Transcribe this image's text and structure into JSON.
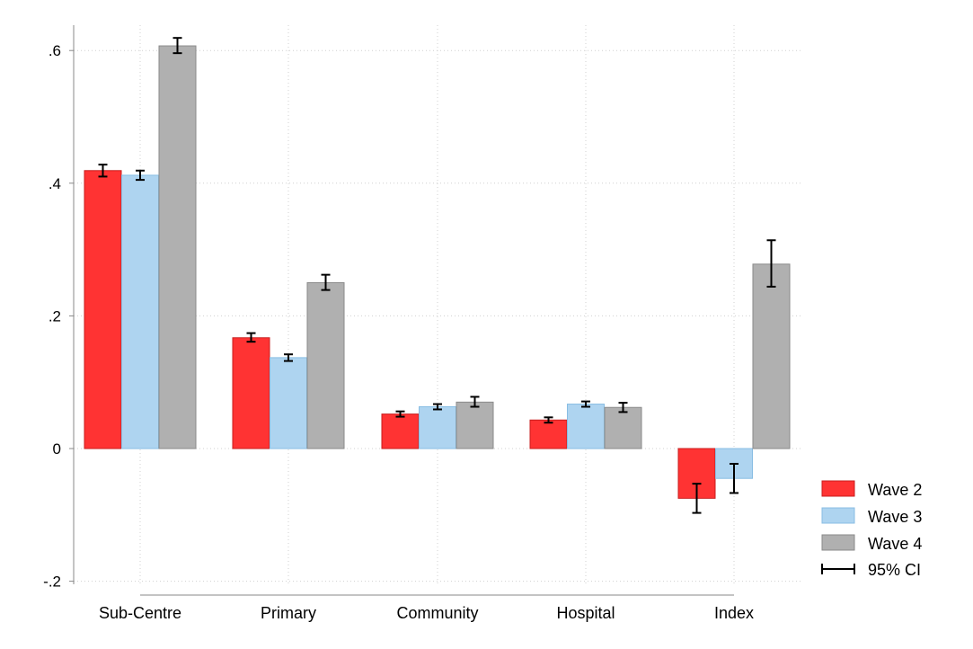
{
  "chart_data": {
    "type": "bar",
    "categories": [
      "Sub-Centre",
      "Primary",
      "Community",
      "Hospital",
      "Index"
    ],
    "series": [
      {
        "name": "Wave 2",
        "color": "#ff3333",
        "stroke": "#c81e1e",
        "values": [
          0.419,
          0.167,
          0.052,
          0.043,
          -0.075
        ],
        "ci_low": [
          0.41,
          0.161,
          0.048,
          0.039,
          -0.097
        ],
        "ci_high": [
          0.428,
          0.174,
          0.056,
          0.047,
          -0.053
        ]
      },
      {
        "name": "Wave 3",
        "color": "#aed4f0",
        "stroke": "#88bde3",
        "values": [
          0.412,
          0.137,
          0.063,
          0.067,
          -0.045
        ],
        "ci_low": [
          0.405,
          0.132,
          0.059,
          0.063,
          -0.067
        ],
        "ci_high": [
          0.419,
          0.142,
          0.067,
          0.071,
          -0.023
        ]
      },
      {
        "name": "Wave 4",
        "color": "#b0b0b0",
        "stroke": "#8a8a8a",
        "values": [
          0.607,
          0.25,
          0.07,
          0.062,
          0.278
        ],
        "ci_low": [
          0.596,
          0.239,
          0.063,
          0.055,
          0.244
        ],
        "ci_high": [
          0.619,
          0.262,
          0.078,
          0.069,
          0.314
        ]
      }
    ],
    "ci_label": "95% CI",
    "yticks": [
      0.6,
      0.4,
      0.2,
      0,
      -0.2
    ],
    "ytick_labels": [
      ".6",
      ".4",
      ".2",
      "0",
      "-.2"
    ],
    "ylim": [
      -0.2,
      0.6
    ],
    "title": "",
    "xlabel": "",
    "ylabel": "",
    "grid": true,
    "legend_position": "right"
  }
}
